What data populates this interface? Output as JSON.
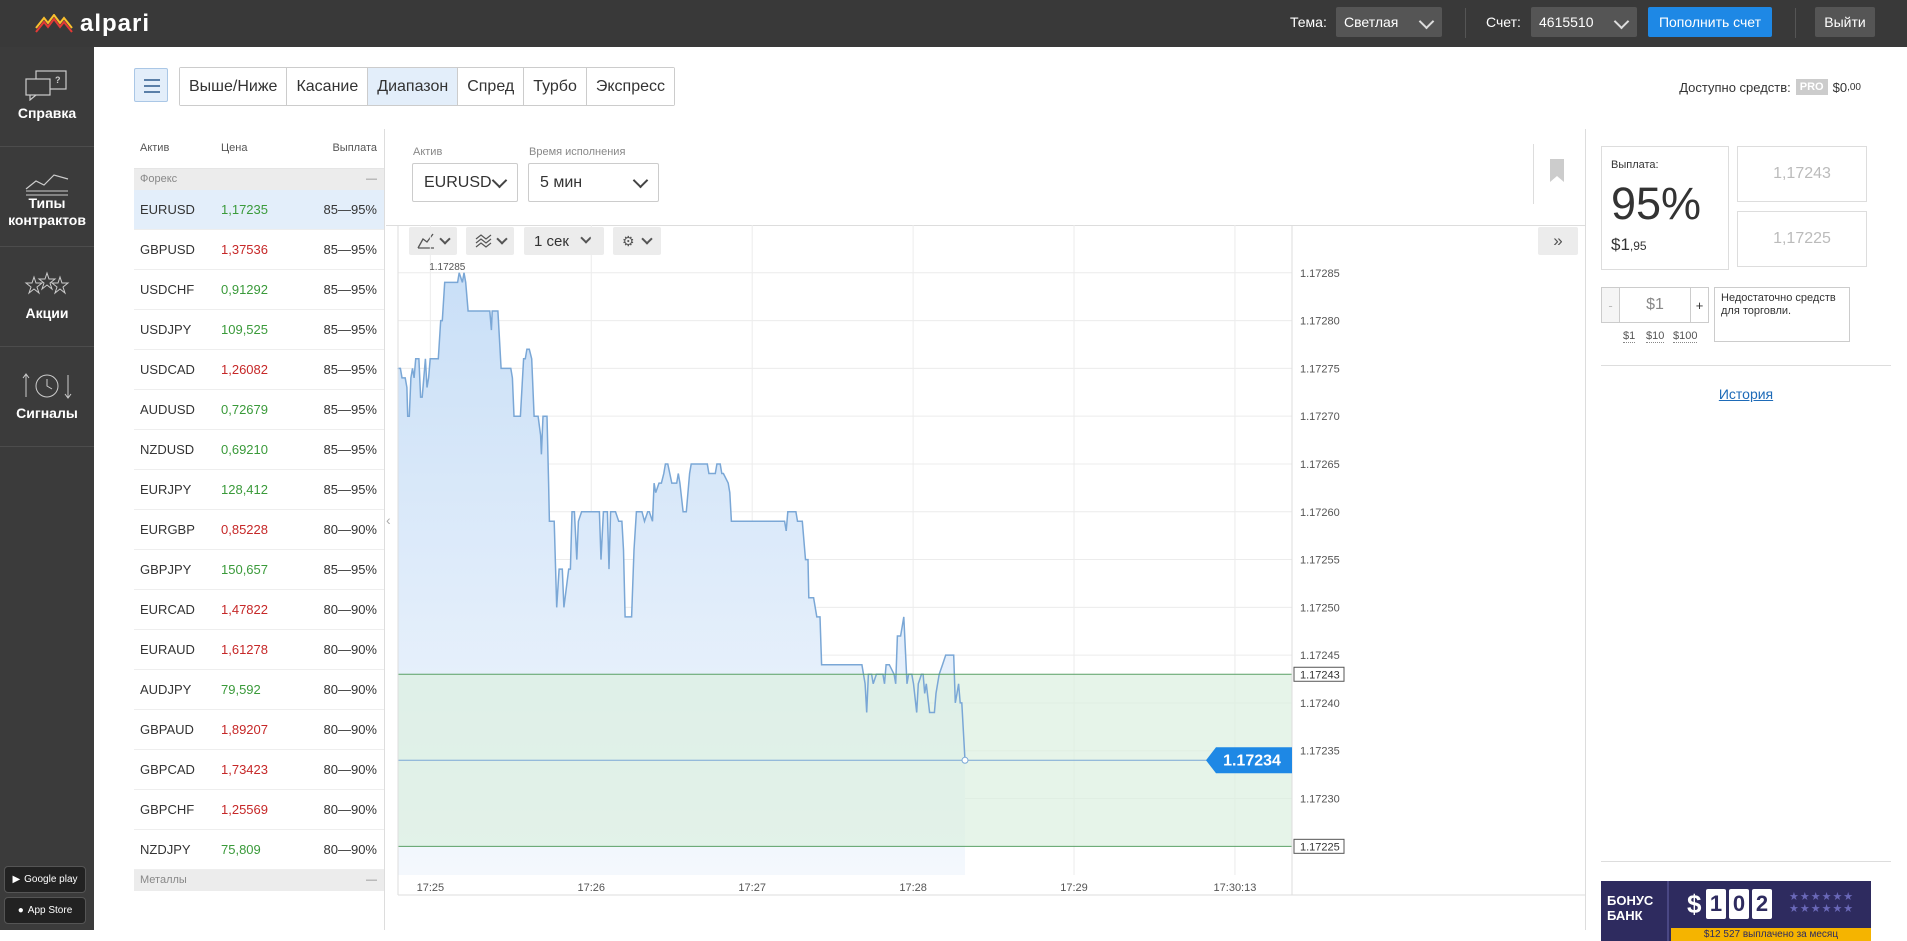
{
  "brand": {
    "name": "alpari"
  },
  "topbar": {
    "theme_label": "Тема:",
    "theme_value": "Светлая",
    "account_label": "Счет:",
    "account_value": "4615510",
    "deposit_label": "Пополнить счет",
    "exit_label": "Выйти"
  },
  "sidebar": {
    "items": [
      {
        "label": "Справка",
        "icon": "help-chat-icon"
      },
      {
        "label": "Типы контрактов",
        "icon": "contract-chart-icon"
      },
      {
        "label": "Акции",
        "icon": "stars-icon"
      },
      {
        "label": "Сигналы",
        "icon": "signals-clock-icon"
      }
    ],
    "google_play": "Google play",
    "app_store": "App Store"
  },
  "contract_tabs": {
    "tabs": [
      "Выше/Ниже",
      "Касание",
      "Диапазон",
      "Спред",
      "Турбо",
      "Экспресс"
    ],
    "active": "Диапазон"
  },
  "funds": {
    "label": "Доступно средств:",
    "badge": "PRO",
    "amount": "$0",
    "cents": ",00"
  },
  "watchlist": {
    "headers": {
      "asset": "Актив",
      "price": "Цена",
      "payout": "Выплата"
    },
    "groups": [
      {
        "name": "Форекс",
        "dash": "—"
      },
      {
        "name": "Металлы",
        "dash": "—"
      }
    ],
    "rows": [
      {
        "asset": "EURUSD",
        "price": "1,17235",
        "dir": "up",
        "payout": "85—95%"
      },
      {
        "asset": "GBPUSD",
        "price": "1,37536",
        "dir": "down",
        "payout": "85—95%"
      },
      {
        "asset": "USDCHF",
        "price": "0,91292",
        "dir": "up",
        "payout": "85—95%"
      },
      {
        "asset": "USDJPY",
        "price": "109,525",
        "dir": "up",
        "payout": "85—95%"
      },
      {
        "asset": "USDCAD",
        "price": "1,26082",
        "dir": "down",
        "payout": "85—95%"
      },
      {
        "asset": "AUDUSD",
        "price": "0,72679",
        "dir": "up",
        "payout": "85—95%"
      },
      {
        "asset": "NZDUSD",
        "price": "0,69210",
        "dir": "up",
        "payout": "85—95%"
      },
      {
        "asset": "EURJPY",
        "price": "128,412",
        "dir": "up",
        "payout": "85—95%"
      },
      {
        "asset": "EURGBP",
        "price": "0,85228",
        "dir": "down",
        "payout": "80—90%"
      },
      {
        "asset": "GBPJPY",
        "price": "150,657",
        "dir": "up",
        "payout": "85—95%"
      },
      {
        "asset": "EURCAD",
        "price": "1,47822",
        "dir": "down",
        "payout": "80—90%"
      },
      {
        "asset": "EURAUD",
        "price": "1,61278",
        "dir": "down",
        "payout": "80—90%"
      },
      {
        "asset": "AUDJPY",
        "price": "79,592",
        "dir": "up",
        "payout": "80—90%"
      },
      {
        "asset": "GBPAUD",
        "price": "1,89207",
        "dir": "down",
        "payout": "80—90%"
      },
      {
        "asset": "GBPCAD",
        "price": "1,73423",
        "dir": "down",
        "payout": "80—90%"
      },
      {
        "asset": "GBPCHF",
        "price": "1,25569",
        "dir": "down",
        "payout": "80—90%"
      },
      {
        "asset": "NZDJPY",
        "price": "75,809",
        "dir": "up",
        "payout": "80—90%"
      }
    ]
  },
  "chart_controls": {
    "asset_label": "Актив",
    "asset_value": "EURUSD",
    "time_label": "Время исполнения",
    "time_value": "5 мин",
    "interval": "1 сек"
  },
  "chart_data": {
    "type": "area",
    "x_ticks": [
      "17:25",
      "17:26",
      "17:27",
      "17:28",
      "17:29",
      "17:30:13"
    ],
    "y_ticks": [
      "1.17285",
      "1.17280",
      "1.17275",
      "1.17270",
      "1.17265",
      "1.17260",
      "1.17255",
      "1.17250",
      "1.17245",
      "1.17240",
      "1.17235",
      "1.17230"
    ],
    "ylim": [
      1.17222,
      1.1729
    ],
    "high_label": "1.17285",
    "current": 1.17234,
    "current_label": "1.17234",
    "upper_bound": 1.17243,
    "upper_label": "1.17243",
    "lower_bound": 1.17225,
    "lower_label": "1.17225",
    "series": [
      [
        0,
        1.17275
      ],
      [
        3,
        1.17275
      ],
      [
        5,
        1.17274
      ],
      [
        9,
        1.17274
      ],
      [
        11,
        1.17273
      ],
      [
        12,
        1.1727
      ],
      [
        14,
        1.1727
      ],
      [
        16,
        1.17274
      ],
      [
        18,
        1.17275
      ],
      [
        20,
        1.17274
      ],
      [
        22,
        1.17276
      ],
      [
        24,
        1.17276
      ],
      [
        26,
        1.17276
      ],
      [
        28,
        1.17272
      ],
      [
        30,
        1.17272
      ],
      [
        32,
        1.17274
      ],
      [
        34,
        1.17276
      ],
      [
        36,
        1.17273
      ],
      [
        38,
        1.17274
      ],
      [
        40,
        1.17276
      ],
      [
        42,
        1.17276
      ],
      [
        46,
        1.17276
      ],
      [
        50,
        1.17276
      ],
      [
        53,
        1.1728
      ],
      [
        55,
        1.1728
      ],
      [
        58,
        1.17284
      ],
      [
        62,
        1.17284
      ],
      [
        70,
        1.17284
      ],
      [
        74,
        1.17284
      ],
      [
        76,
        1.17285
      ],
      [
        80,
        1.17284
      ],
      [
        82,
        1.17285
      ],
      [
        84,
        1.17284
      ],
      [
        87,
        1.17281
      ],
      [
        96,
        1.17281
      ],
      [
        104,
        1.17281
      ],
      [
        110,
        1.17281
      ],
      [
        114,
        1.17281
      ],
      [
        116,
        1.17279
      ],
      [
        117,
        1.17281
      ],
      [
        120,
        1.17281
      ],
      [
        124,
        1.17281
      ],
      [
        128,
        1.17275
      ],
      [
        133,
        1.17275
      ],
      [
        140,
        1.17275
      ],
      [
        142,
        1.17274
      ],
      [
        144,
        1.1727
      ],
      [
        152,
        1.1727
      ],
      [
        156,
        1.17276
      ],
      [
        158,
        1.17276
      ],
      [
        160,
        1.17277
      ],
      [
        163,
        1.17277
      ],
      [
        166,
        1.17276
      ],
      [
        169,
        1.1727
      ],
      [
        174,
        1.1727
      ],
      [
        177,
        1.17268
      ],
      [
        178,
        1.17266
      ],
      [
        180,
        1.1727
      ],
      [
        185,
        1.1727
      ],
      [
        187,
        1.17263
      ],
      [
        188,
        1.17259
      ],
      [
        194,
        1.17259
      ],
      [
        197,
        1.1725
      ],
      [
        200,
        1.17254
      ],
      [
        204,
        1.17254
      ],
      [
        206,
        1.1725
      ],
      [
        212,
        1.17254
      ],
      [
        214,
        1.17254
      ],
      [
        216,
        1.1726
      ],
      [
        219,
        1.1726
      ],
      [
        222,
        1.17255
      ],
      [
        224,
        1.17259
      ],
      [
        228,
        1.1726
      ],
      [
        230,
        1.1726
      ],
      [
        236,
        1.1726
      ],
      [
        240,
        1.1726
      ],
      [
        244,
        1.1726
      ],
      [
        248,
        1.1726
      ],
      [
        250,
        1.1726
      ],
      [
        252,
        1.17255
      ],
      [
        255,
        1.1726
      ],
      [
        260,
        1.1726
      ],
      [
        262,
        1.17254
      ],
      [
        264,
        1.1726
      ],
      [
        270,
        1.1726
      ],
      [
        274,
        1.17259
      ],
      [
        278,
        1.17259
      ],
      [
        280,
        1.17256
      ],
      [
        282,
        1.17249
      ],
      [
        286,
        1.17249
      ],
      [
        290,
        1.17249
      ],
      [
        293,
        1.17256
      ],
      [
        296,
        1.1726
      ],
      [
        298,
        1.1726
      ],
      [
        300,
        1.1726
      ],
      [
        303,
        1.1726
      ],
      [
        306,
        1.17259
      ],
      [
        310,
        1.1726
      ],
      [
        312,
        1.1726
      ],
      [
        316,
        1.17259
      ],
      [
        318,
        1.17263
      ],
      [
        320,
        1.17262
      ],
      [
        324,
        1.17263
      ],
      [
        327,
        1.17263
      ],
      [
        330,
        1.17264
      ],
      [
        332,
        1.17265
      ],
      [
        335,
        1.17265
      ],
      [
        340,
        1.17263
      ],
      [
        346,
        1.17263
      ],
      [
        348,
        1.17264
      ],
      [
        350,
        1.17263
      ],
      [
        354,
        1.1726
      ],
      [
        358,
        1.1726
      ],
      [
        362,
        1.17264
      ],
      [
        364,
        1.17265
      ],
      [
        366,
        1.17265
      ],
      [
        370,
        1.17265
      ],
      [
        376,
        1.17265
      ],
      [
        380,
        1.17265
      ],
      [
        384,
        1.17265
      ],
      [
        386,
        1.17264
      ],
      [
        390,
        1.17264
      ],
      [
        394,
        1.17264
      ],
      [
        396,
        1.17265
      ],
      [
        398,
        1.17265
      ],
      [
        400,
        1.17265
      ],
      [
        402,
        1.17264
      ],
      [
        404,
        1.17264
      ],
      [
        410,
        1.17263
      ],
      [
        412,
        1.17262
      ],
      [
        414,
        1.17259
      ],
      [
        424,
        1.17259
      ],
      [
        435,
        1.17259
      ],
      [
        440,
        1.17259
      ],
      [
        444,
        1.17259
      ],
      [
        448,
        1.17259
      ],
      [
        452,
        1.17259
      ],
      [
        456,
        1.17259
      ],
      [
        460,
        1.17259
      ],
      [
        464,
        1.17259
      ],
      [
        468,
        1.17259
      ],
      [
        474,
        1.17259
      ],
      [
        476,
        1.17259
      ],
      [
        478,
        1.17259
      ],
      [
        480,
        1.17259
      ],
      [
        482,
        1.17258
      ],
      [
        484,
        1.1726
      ],
      [
        488,
        1.1726
      ],
      [
        494,
        1.1726
      ],
      [
        496,
        1.17259
      ],
      [
        502,
        1.17259
      ],
      [
        506,
        1.17255
      ],
      [
        509,
        1.17255
      ],
      [
        510,
        1.17251
      ],
      [
        512,
        1.17251
      ],
      [
        516,
        1.17251
      ],
      [
        520,
        1.17249
      ],
      [
        524,
        1.17249
      ],
      [
        526,
        1.17244
      ],
      [
        530,
        1.17244
      ],
      [
        534,
        1.17244
      ],
      [
        536,
        1.17244
      ],
      [
        540,
        1.17244
      ],
      [
        546,
        1.17244
      ],
      [
        548,
        1.17244
      ],
      [
        554,
        1.17244
      ],
      [
        560,
        1.17244
      ],
      [
        562,
        1.17244
      ],
      [
        566,
        1.17244
      ],
      [
        570,
        1.17244
      ],
      [
        572,
        1.17244
      ],
      [
        576,
        1.17244
      ],
      [
        580,
        1.17242
      ],
      [
        582,
        1.17239
      ],
      [
        584,
        1.17243
      ],
      [
        588,
        1.17243
      ],
      [
        590,
        1.17242
      ],
      [
        594,
        1.17243
      ],
      [
        596,
        1.17243
      ],
      [
        598,
        1.17243
      ],
      [
        600,
        1.17243
      ],
      [
        602,
        1.17243
      ],
      [
        604,
        1.17242
      ],
      [
        606,
        1.17244
      ],
      [
        610,
        1.17244
      ],
      [
        616,
        1.17243
      ],
      [
        618,
        1.17242
      ],
      [
        620,
        1.17247
      ],
      [
        624,
        1.17247
      ],
      [
        626,
        1.17248
      ],
      [
        628,
        1.17249
      ],
      [
        632,
        1.17242
      ],
      [
        634,
        1.17243
      ],
      [
        636,
        1.17243
      ],
      [
        638,
        1.17243
      ],
      [
        640,
        1.17242
      ],
      [
        644,
        1.17239
      ],
      [
        646,
        1.17242
      ],
      [
        650,
        1.17243
      ],
      [
        652,
        1.17243
      ],
      [
        654,
        1.17241
      ],
      [
        656,
        1.17242
      ],
      [
        660,
        1.17239
      ],
      [
        664,
        1.17239
      ],
      [
        666,
        1.17239
      ],
      [
        668,
        1.17241
      ],
      [
        670,
        1.17242
      ],
      [
        672,
        1.17243
      ],
      [
        676,
        1.17244
      ],
      [
        680,
        1.17245
      ],
      [
        684,
        1.17245
      ],
      [
        688,
        1.17245
      ],
      [
        690,
        1.17245
      ],
      [
        692,
        1.1724
      ],
      [
        694,
        1.17241
      ],
      [
        696,
        1.17242
      ],
      [
        698,
        1.1724
      ],
      [
        700,
        1.1724
      ],
      [
        702,
        1.17237
      ],
      [
        704,
        1.17234
      ]
    ],
    "series_x_max": 1110
  },
  "trade": {
    "payout_label": "Выплата:",
    "payout_percent": "95%",
    "payout_amount": "$1",
    "payout_cents": ",95",
    "price_high": "1,17243",
    "price_low": "1,17225",
    "stake_value": "$1",
    "minus": "-",
    "plus": "+",
    "warning": "Недостаточно средств для торговли.",
    "quick_amounts": [
      "$1",
      "$10",
      "$100"
    ],
    "history": "История"
  },
  "bonus": {
    "title_line1": "БОНУС",
    "title_line2": "БАНК",
    "currency": "$",
    "digits": [
      "1",
      "0",
      "2"
    ],
    "footer": "$12 527 выплачено за месяц"
  }
}
